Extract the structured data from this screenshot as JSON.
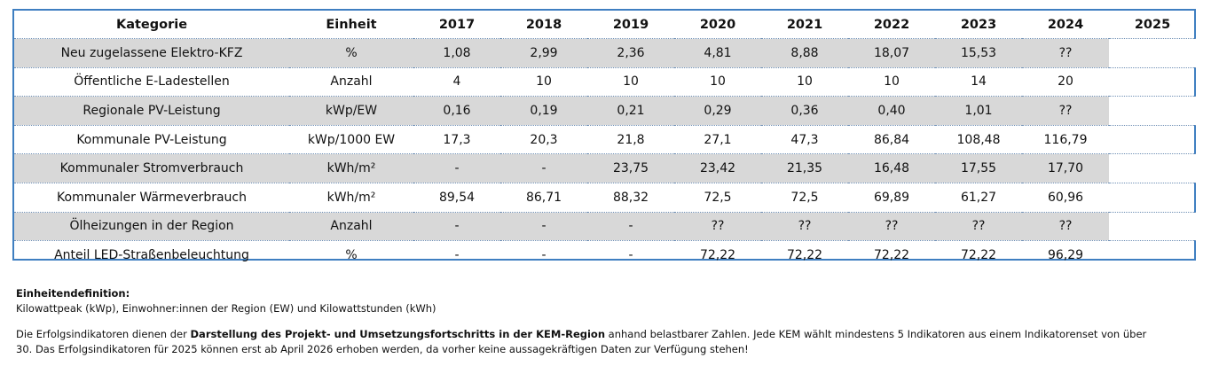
{
  "table": {
    "headers": [
      "Kategorie",
      "Einheit",
      "2017",
      "2018",
      "2019",
      "2020",
      "2021",
      "2022",
      "2023",
      "2024",
      "2025"
    ],
    "rows": [
      [
        "Neu zugelassene Elektro-KFZ",
        "%",
        "1,08",
        "2,99",
        "2,36",
        "4,81",
        "8,88",
        "18,07",
        "15,53",
        "??",
        ""
      ],
      [
        "Öffentliche E-Ladestellen",
        "Anzahl",
        "4",
        "10",
        "10",
        "10",
        "10",
        "10",
        "14",
        "20",
        ""
      ],
      [
        "Regionale PV-Leistung",
        "kWp/EW",
        "0,16",
        "0,19",
        "0,21",
        "0,29",
        "0,36",
        "0,40",
        "1,01",
        "??",
        ""
      ],
      [
        "Kommunale PV-Leistung",
        "kWp/1000 EW",
        "17,3",
        "20,3",
        "21,8",
        "27,1",
        "47,3",
        "86,84",
        "108,48",
        "116,79",
        ""
      ],
      [
        "Kommunaler Stromverbrauch",
        "kWh/m²",
        "-",
        "-",
        "23,75",
        "23,42",
        "21,35",
        "16,48",
        "17,55",
        "17,70",
        ""
      ],
      [
        "Kommunaler Wärmeverbrauch",
        "kWh/m²",
        "89,54",
        "86,71",
        "88,32",
        "72,5",
        "72,5",
        "69,89",
        "61,27",
        "60,96",
        ""
      ],
      [
        "Ölheizungen in der Region",
        "Anzahl",
        "-",
        "-",
        "-",
        "??",
        "??",
        "??",
        "??",
        "??",
        ""
      ],
      [
        "Anteil LED-Straßenbeleuchtung",
        "%",
        "-",
        "-",
        "-",
        "72,22",
        "72,22",
        "72,22",
        "72,22",
        "96,29",
        ""
      ]
    ]
  },
  "notes": {
    "unit_heading": "Einheitendefinition:",
    "unit_text": "Kilowattpeak (kWp), Einwohner:innen der Region (EW) und Kilowattstunden (kWh)",
    "desc_before": "Die Erfolgsindikatoren dienen der ",
    "desc_bold": "Darstellung des Projekt- und Umsetzungsfortschritts in der KEM-Region",
    "desc_after_line1": " anhand belastbarer Zahlen. Jede KEM wählt mindestens 5 Indikatoren aus einem Indikatorenset von über",
    "desc_line2": "30. Das Erfolgsindikatoren für 2025 können erst ab April 2026 erhoben werden, da vorher keine aussagekräftigen Daten zur Verfügung stehen!"
  }
}
